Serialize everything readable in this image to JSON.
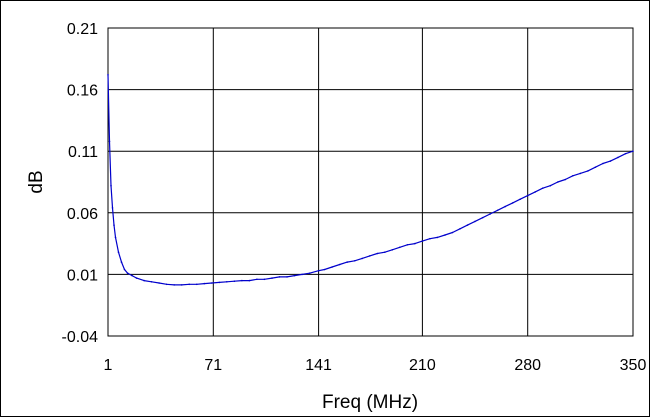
{
  "chart_data": {
    "type": "line",
    "title": "",
    "xlabel": "Freq (MHz)",
    "ylabel": "dB",
    "xlim": [
      1,
      350
    ],
    "ylim": [
      -0.04,
      0.21
    ],
    "x_tick_labels": [
      "1",
      "71",
      "141",
      "210",
      "280",
      "350"
    ],
    "y_tick_labels": [
      "0.21",
      "0.16",
      "0.11",
      "0.06",
      "0.01",
      "-0.04"
    ],
    "grid": true,
    "legend": "none",
    "series": [
      {
        "color": "#0000cc",
        "x": [
          1,
          2,
          3,
          4,
          5,
          6,
          8,
          10,
          12,
          14,
          17,
          20,
          25,
          30,
          35,
          40,
          45,
          50,
          55,
          60,
          65,
          70,
          75,
          80,
          85,
          90,
          95,
          100,
          105,
          110,
          115,
          120,
          125,
          130,
          135,
          141,
          145,
          150,
          155,
          160,
          165,
          170,
          175,
          180,
          185,
          190,
          195,
          200,
          205,
          210,
          215,
          220,
          225,
          230,
          235,
          240,
          245,
          250,
          255,
          260,
          265,
          270,
          275,
          280,
          285,
          290,
          295,
          300,
          305,
          310,
          315,
          320,
          325,
          330,
          335,
          340,
          345,
          350
        ],
        "values": [
          0.172,
          0.118,
          0.082,
          0.064,
          0.05,
          0.04,
          0.028,
          0.02,
          0.014,
          0.011,
          0.009,
          0.007,
          0.005,
          0.004,
          0.003,
          0.002,
          0.0015,
          0.0015,
          0.002,
          0.002,
          0.0025,
          0.003,
          0.0035,
          0.004,
          0.0045,
          0.005,
          0.005,
          0.006,
          0.006,
          0.007,
          0.008,
          0.008,
          0.009,
          0.01,
          0.011,
          0.013,
          0.014,
          0.016,
          0.018,
          0.02,
          0.021,
          0.023,
          0.025,
          0.027,
          0.028,
          0.03,
          0.032,
          0.034,
          0.035,
          0.037,
          0.039,
          0.04,
          0.042,
          0.044,
          0.047,
          0.05,
          0.053,
          0.056,
          0.059,
          0.062,
          0.065,
          0.068,
          0.071,
          0.074,
          0.077,
          0.08,
          0.082,
          0.085,
          0.087,
          0.09,
          0.092,
          0.094,
          0.097,
          0.1,
          0.102,
          0.105,
          0.108,
          0.11
        ]
      }
    ]
  }
}
